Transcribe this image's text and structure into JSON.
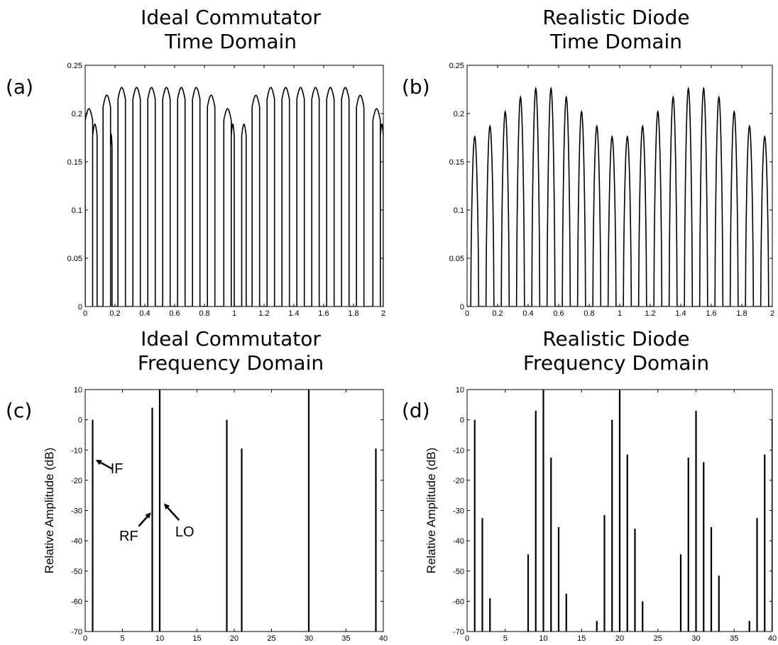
{
  "chart_data": [
    {
      "id": "a",
      "panel_label": "(a)",
      "type": "line",
      "title_lines": [
        "Ideal Commutator",
        "Time Domain"
      ],
      "xlabel": "",
      "ylabel": "",
      "xlim": [
        0,
        2
      ],
      "ylim": [
        0,
        0.25
      ],
      "xticks": [
        "0",
        "0.2",
        "0.4",
        "0.6",
        "0.8",
        "1",
        "1.2",
        "1.4",
        "1.6",
        "1.8",
        "2"
      ],
      "yticks": [
        "0",
        "0.05",
        "0.1",
        "0.15",
        "0.2",
        "0.25"
      ],
      "grid": false,
      "pulse_period": 0.1,
      "pulses": [
        {
          "start": 0.0,
          "end": 0.05,
          "peak": 0.205
        },
        {
          "start": 0.05,
          "end": 0.08,
          "peak": 0.189
        },
        {
          "start": 0.12,
          "end": 0.17,
          "peak": 0.219
        },
        {
          "start": 0.17,
          "end": 0.18,
          "peak": 0.178
        },
        {
          "start": 0.22,
          "end": 0.27,
          "peak": 0.227
        },
        {
          "start": 0.32,
          "end": 0.37,
          "peak": 0.227
        },
        {
          "start": 0.42,
          "end": 0.47,
          "peak": 0.227
        },
        {
          "start": 0.52,
          "end": 0.57,
          "peak": 0.227
        },
        {
          "start": 0.62,
          "end": 0.67,
          "peak": 0.227
        },
        {
          "start": 0.72,
          "end": 0.77,
          "peak": 0.227
        },
        {
          "start": 0.82,
          "end": 0.87,
          "peak": 0.219
        },
        {
          "start": 0.93,
          "end": 0.98,
          "peak": 0.205
        },
        {
          "start": 0.98,
          "end": 1.0,
          "peak": 0.189
        },
        {
          "start": 1.05,
          "end": 1.08,
          "peak": 0.189
        },
        {
          "start": 1.12,
          "end": 1.17,
          "peak": 0.219
        },
        {
          "start": 1.22,
          "end": 1.27,
          "peak": 0.227
        },
        {
          "start": 1.32,
          "end": 1.37,
          "peak": 0.227
        },
        {
          "start": 1.42,
          "end": 1.47,
          "peak": 0.227
        },
        {
          "start": 1.52,
          "end": 1.57,
          "peak": 0.227
        },
        {
          "start": 1.62,
          "end": 1.67,
          "peak": 0.227
        },
        {
          "start": 1.72,
          "end": 1.77,
          "peak": 0.227
        },
        {
          "start": 1.82,
          "end": 1.87,
          "peak": 0.219
        },
        {
          "start": 1.93,
          "end": 1.98,
          "peak": 0.205
        },
        {
          "start": 1.98,
          "end": 2.0,
          "peak": 0.189
        }
      ]
    },
    {
      "id": "b",
      "panel_label": "(b)",
      "type": "line",
      "title_lines": [
        "Realistic Diode",
        "Time Domain"
      ],
      "xlabel": "",
      "ylabel": "",
      "xlim": [
        0,
        2
      ],
      "ylim": [
        0,
        0.25
      ],
      "xticks": [
        "0",
        "0.2",
        "0.4",
        "0.6",
        "0.8",
        "1",
        "1.2",
        "1.4",
        "1.6",
        "1.8",
        "2"
      ],
      "yticks": [
        "0",
        "0.05",
        "0.1",
        "0.15",
        "0.2",
        "0.25"
      ],
      "grid": false,
      "pulse_centers": [
        0.05,
        0.15,
        0.25,
        0.35,
        0.45,
        0.55,
        0.65,
        0.75,
        0.85,
        0.95,
        1.05,
        1.15,
        1.25,
        1.35,
        1.45,
        1.55,
        1.65,
        1.75,
        1.85,
        1.95
      ],
      "pulse_peaks": [
        0.176,
        0.187,
        0.202,
        0.217,
        0.226,
        0.226,
        0.217,
        0.202,
        0.187,
        0.176,
        0.176,
        0.187,
        0.202,
        0.217,
        0.226,
        0.226,
        0.217,
        0.202,
        0.187,
        0.176
      ]
    },
    {
      "id": "c",
      "panel_label": "(c)",
      "type": "bar",
      "title_lines": [
        "Ideal Commutator",
        "Frequency Domain"
      ],
      "xlabel": "",
      "ylabel": "Relative Amplitude (dB)",
      "xlim": [
        0,
        40
      ],
      "ylim": [
        -70,
        10
      ],
      "xticks": [
        "0",
        "5",
        "10",
        "15",
        "20",
        "25",
        "30",
        "35",
        "40"
      ],
      "yticks": [
        "-70",
        "-60",
        "-50",
        "-40",
        "-30",
        "-20",
        "-10",
        "0",
        "10"
      ],
      "grid": false,
      "x": [
        1,
        9,
        10,
        19,
        21,
        30,
        39
      ],
      "values": [
        0,
        4,
        10,
        0,
        -9.5,
        10,
        -9.5
      ],
      "annotations": [
        {
          "text": "IF",
          "x": 1.2,
          "y": -13
        },
        {
          "text": "RF",
          "x": 8.7,
          "y": -31
        },
        {
          "text": "LO",
          "x": 10.4,
          "y": -28
        }
      ]
    },
    {
      "id": "d",
      "panel_label": "(d)",
      "type": "bar",
      "title_lines": [
        "Realistic Diode",
        "Frequency Domain"
      ],
      "xlabel": "",
      "ylabel": "Relative Amplitude (dB)",
      "xlim": [
        0,
        40
      ],
      "ylim": [
        -70,
        10
      ],
      "xticks": [
        "0",
        "5",
        "10",
        "15",
        "20",
        "25",
        "30",
        "35",
        "40"
      ],
      "yticks": [
        "-70",
        "-60",
        "-50",
        "-40",
        "-30",
        "-20",
        "-10",
        "0",
        "10"
      ],
      "grid": false,
      "x": [
        1,
        2,
        3,
        8,
        9,
        10,
        11,
        12,
        13,
        17,
        18,
        19,
        20,
        21,
        22,
        23,
        28,
        29,
        30,
        31,
        32,
        33,
        37,
        38,
        39,
        40
      ],
      "values": [
        0,
        -32.5,
        -59,
        -44.5,
        3,
        10,
        -12.5,
        -35.5,
        -57.5,
        -66.5,
        -31.5,
        0,
        10,
        -11.5,
        -36,
        -60,
        -44.5,
        -12.5,
        3,
        -14,
        -35.5,
        -51.5,
        -66.5,
        -32.5,
        -11.5,
        0
      ]
    }
  ]
}
